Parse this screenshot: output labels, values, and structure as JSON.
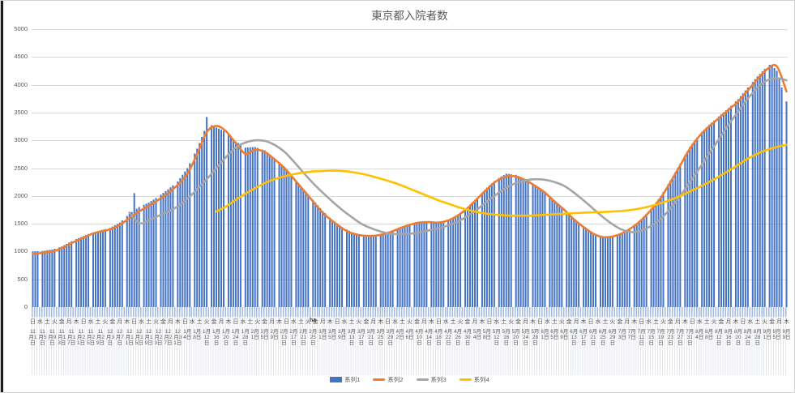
{
  "title": "東京都入院者数",
  "stray_annotation": "ha",
  "chart_data": {
    "type": "combo",
    "title": "東京都入院者数",
    "grid": "horizontal",
    "legend_position": "bottom",
    "y_axis": {
      "min": 0,
      "max": 5000,
      "step": 500
    },
    "x_axis": {
      "num_points": 313,
      "first_date": "11月1日",
      "last_date": "9月9日",
      "weekday_tick_interval_days": 3,
      "weekday_labels": "日水土火金月木日水土火金月木日水土火金月木日水土火金月木日水土火金月木日水土火金月木日水土火金月木日水土火金月木日水土火金月木日水土火金月木日水土火金月木日水土火金月木日水土火金月木日水土火金月木日水土火金月木",
      "date_tick_interval_days": 4,
      "date_ticks": [
        "11月1日",
        "11月5日",
        "11月9日",
        "11月13日",
        "11月17日",
        "11月21日",
        "11月25日",
        "11月29日",
        "12月3日",
        "12月7日",
        "12月11日",
        "12月15日",
        "12月19日",
        "12月23日",
        "12月27日",
        "12月31日",
        "1月4日",
        "1月8日",
        "1月12日",
        "1月16日",
        "1月20日",
        "1月24日",
        "1月28日",
        "2月1日",
        "2月5日",
        "2月9日",
        "2月13日",
        "2月17日",
        "2月21日",
        "2月25日",
        "3月1日",
        "3月5日",
        "3月9日",
        "3月13日",
        "3月17日",
        "3月21日",
        "3月25日",
        "3月29日",
        "4月2日",
        "4月6日",
        "4月10日",
        "4月14日",
        "4月18日",
        "4月22日",
        "4月26日",
        "4月30日",
        "5月4日",
        "5月8日",
        "5月12日",
        "5月16日",
        "5月20日",
        "5月24日",
        "5月28日",
        "6月1日",
        "6月5日",
        "6月9日",
        "6月13日",
        "6月17日",
        "6月21日",
        "6月25日",
        "6月29日",
        "7月3日",
        "7月7日",
        "7月11日",
        "7月15日",
        "7月19日",
        "7月23日",
        "7月27日",
        "7月31日",
        "8月4日",
        "8月8日",
        "8月12日",
        "8月16日",
        "8月20日",
        "8月24日",
        "8月28日",
        "9月1日",
        "9月5日",
        "9月9日"
      ]
    },
    "series": [
      {
        "name": "系列1",
        "type": "bar",
        "color": "#4472C4",
        "start_day": 0,
        "step_days": 1,
        "values": [
          1000,
          1003,
          1005,
          null,
          1010,
          1016,
          1023,
          1029,
          1035,
          1049,
          null,
          1076,
          1090,
          1114,
          1138,
          1161,
          1185,
          null,
          1223,
          1241,
          1260,
          1278,
          1295,
          1313,
          null,
          1343,
          1355,
          1368,
          1380,
          1391,
          1403,
          null,
          1425,
          1449,
          1473,
          1496,
          1520,
          1560,
          null,
          1640,
          1680,
          1710,
          2050,
          1770,
          1800,
          null,
          1840,
          1860,
          1880,
          1908,
          1935,
          1963,
          null,
          2023,
          2055,
          2088,
          2120,
          2155,
          2190,
          null,
          2260,
          2320,
          2380,
          2440,
          2500,
          2588,
          null,
          2763,
          2850,
          2950,
          3060,
          3170,
          3420,
          null,
          3270,
          3250,
          3230,
          3210,
          3190,
          3170,
          null,
          3110,
          3065,
          3023,
          2980,
          2953,
          2925,
          null,
          2870,
          2873,
          2875,
          2878,
          2880,
          2865,
          null,
          2835,
          2820,
          2785,
          2750,
          2715,
          2680,
          null,
          2605,
          2568,
          2530,
          2480,
          2430,
          2380,
          null,
          2278,
          2225,
          2173,
          2120,
          2073,
          2025,
          null,
          1930,
          1880,
          1830,
          1780,
          1730,
          1690,
          null,
          1610,
          1570,
          1538,
          1505,
          1473,
          1440,
          null,
          1395,
          1373,
          1350,
          1338,
          1325,
          1313,
          null,
          1298,
          1295,
          1293,
          1290,
          1295,
          1300,
          null,
          1310,
          1323,
          1335,
          1348,
          1360,
          1378,
          null,
          1413,
          1430,
          1445,
          1460,
          1475,
          1490,
          null,
          1510,
          1520,
          1530,
          1533,
          1535,
          1538,
          null,
          1538,
          1535,
          1533,
          1530,
          1540,
          1550,
          null,
          1570,
          1593,
          1615,
          1638,
          1660,
          1695,
          null,
          1765,
          1800,
          1843,
          1885,
          1928,
          1970,
          null,
          2060,
          2105,
          2150,
          2188,
          2225,
          2263,
          null,
          2325,
          2350,
          2375,
          2400,
          2395,
          2390,
          null,
          2380,
          2360,
          2340,
          2320,
          2300,
          2275,
          null,
          2225,
          2200,
          2170,
          2140,
          2110,
          2080,
          null,
          2000,
          1960,
          1920,
          1880,
          1840,
          1800,
          null,
          1718,
          1675,
          1633,
          1590,
          1555,
          1520,
          null,
          1450,
          1420,
          1390,
          1360,
          1330,
          1315,
          null,
          1285,
          1270,
          1273,
          1275,
          1278,
          1280,
          null,
          1310,
          1325,
          1340,
          1365,
          1390,
          1415,
          null,
          1475,
          1510,
          1545,
          1580,
          1628,
          1675,
          null,
          1770,
          1828,
          1885,
          1943,
          2000,
          2070,
          null,
          2210,
          2280,
          2355,
          2430,
          2505,
          2580,
          null,
          2730,
          2805,
          2880,
          2938,
          2995,
          3053,
          null,
          3153,
          3195,
          3238,
          3280,
          3318,
          3355,
          null,
          3430,
          3468,
          3505,
          3543,
          3580,
          3620,
          null,
          3700,
          3740,
          3793,
          3845,
          3898,
          3950,
          null,
          4050,
          4100,
          4150,
          4195,
          4240,
          4285,
          null,
          4360,
          4340,
          4300,
          4250,
          4100,
          3950,
          null,
          3700
        ]
      },
      {
        "name": "系列2",
        "type": "line",
        "color": "#ED7D31",
        "start_day": 0,
        "step_days": 4,
        "values": [
          960,
          975,
          1000,
          1060,
          1150,
          1230,
          1310,
          1360,
          1400,
          1480,
          1600,
          1720,
          1820,
          1930,
          2050,
          2200,
          2400,
          2750,
          3150,
          3260,
          3160,
          2950,
          2760,
          2830,
          2790,
          2660,
          2510,
          2310,
          2110,
          1900,
          1700,
          1550,
          1420,
          1330,
          1290,
          1280,
          1300,
          1350,
          1420,
          1480,
          1520,
          1530,
          1520,
          1560,
          1650,
          1780,
          1950,
          2120,
          2270,
          2350,
          2350,
          2280,
          2180,
          2060,
          1900,
          1750,
          1580,
          1440,
          1320,
          1260,
          1270,
          1330,
          1430,
          1570,
          1750,
          1970,
          2250,
          2550,
          2850,
          3080,
          3250,
          3400,
          3550,
          3700,
          3900,
          4100,
          4280,
          4330,
          3880
        ]
      },
      {
        "name": "系列3",
        "type": "line",
        "color": "#A5A5A5",
        "start_day": 40,
        "step_days": 4,
        "values": [
          1700,
          1510,
          1560,
          1640,
          1720,
          1810,
          1950,
          2120,
          2300,
          2500,
          2700,
          2870,
          2960,
          3000,
          2990,
          2920,
          2800,
          2620,
          2420,
          2230,
          2060,
          1900,
          1750,
          1620,
          1500,
          1420,
          1360,
          1320,
          1310,
          1320,
          1340,
          1380,
          1420,
          1470,
          1540,
          1640,
          1760,
          1900,
          2030,
          2150,
          2230,
          2280,
          2300,
          2290,
          2250,
          2180,
          2060,
          1920,
          1770,
          1620,
          1490,
          1390,
          1350,
          1380,
          1460,
          1590,
          1780,
          2000,
          2250,
          2500,
          2760,
          3020,
          3280,
          3520,
          3750,
          3950,
          4080,
          4120,
          4080
        ]
      },
      {
        "name": "系列4",
        "type": "line",
        "color": "#FFC000",
        "start_day": 76,
        "step_days": 4,
        "values": [
          1720,
          1810,
          1930,
          2040,
          2140,
          2230,
          2300,
          2350,
          2390,
          2420,
          2440,
          2450,
          2455,
          2450,
          2430,
          2400,
          2360,
          2310,
          2260,
          2200,
          2130,
          2060,
          1990,
          1920,
          1860,
          1800,
          1750,
          1710,
          1680,
          1660,
          1650,
          1645,
          1645,
          1650,
          1660,
          1670,
          1680,
          1690,
          1700,
          1705,
          1710,
          1720,
          1730,
          1750,
          1780,
          1820,
          1870,
          1930,
          2000,
          2080,
          2160,
          2250,
          2350,
          2450,
          2560,
          2670,
          2760,
          2830,
          2880,
          2920
        ]
      }
    ]
  }
}
